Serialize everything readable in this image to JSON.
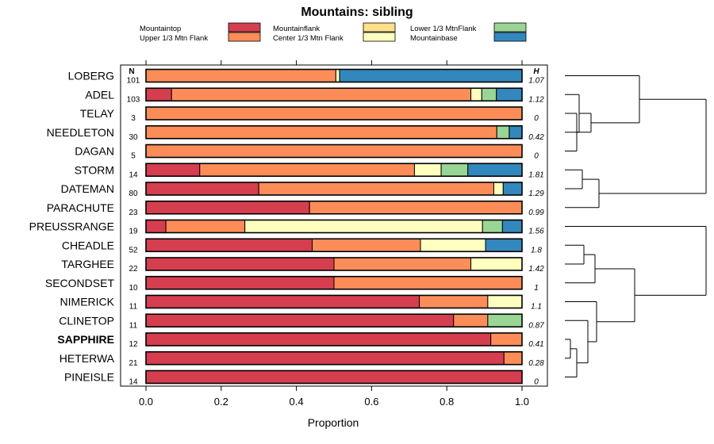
{
  "chart_data": {
    "type": "bar",
    "orientation": "horizontal",
    "stacked": true,
    "title": "Mountains: sibling",
    "xlabel": "Proportion",
    "xlim": [
      0,
      1
    ],
    "xticks": [
      "0.0",
      "0.2",
      "0.4",
      "0.6",
      "0.8",
      "1.0"
    ],
    "xtick_values": [
      0,
      0.2,
      0.4,
      0.6,
      0.8,
      1.0
    ],
    "n_header": "N",
    "h_header": "H",
    "categories": [
      "LOBERG",
      "ADEL",
      "TELAY",
      "NEEDLETON",
      "DAGAN",
      "STORM",
      "DATEMAN",
      "PARACHUTE",
      "PREUSSRANGE",
      "CHEADLE",
      "TARGHEE",
      "SECONDSET",
      "NIMERICK",
      "CLINETOP",
      "SAPPHIRE",
      "HETERWA",
      "PINEISLE"
    ],
    "highlight": "SAPPHIRE",
    "n": [
      "101",
      "103",
      "3",
      "30",
      "5",
      "14",
      "80",
      "23",
      "19",
      "52",
      "22",
      "10",
      "11",
      "11",
      "12",
      "21",
      "14"
    ],
    "h": [
      "1.07",
      "1.12",
      "0",
      "0.42",
      "0",
      "1.81",
      "1.29",
      "0.99",
      "1.56",
      "1.8",
      "1.42",
      "1",
      "1.1",
      "0.87",
      "0.41",
      "0.28",
      "0"
    ],
    "series": [
      {
        "name": "Mountaintop",
        "color": "#d53e4f",
        "values": [
          0,
          0.068,
          0,
          0,
          0,
          0.143,
          0.3,
          0.435,
          0.053,
          0.442,
          0.5,
          0.5,
          0.727,
          0.818,
          0.917,
          0.952,
          1.0
        ]
      },
      {
        "name": "Upper 1/3 Mtn Flank",
        "color": "#fc8d59",
        "values": [
          0.505,
          0.796,
          1.0,
          0.933,
          1.0,
          0.571,
          0.625,
          0.565,
          0.21,
          0.288,
          0.364,
          0.5,
          0.182,
          0.091,
          0.083,
          0.048,
          0
        ]
      },
      {
        "name": "Mountainflank",
        "color": "#fee08b",
        "values": [
          0,
          0,
          0,
          0,
          0,
          0,
          0,
          0,
          0,
          0,
          0,
          0,
          0,
          0,
          0,
          0,
          0
        ]
      },
      {
        "name": "Center 1/3 Mtn Flank",
        "color": "#ffffbf",
        "values": [
          0.01,
          0.029,
          0,
          0,
          0,
          0.071,
          0.025,
          0,
          0.632,
          0.173,
          0.136,
          0,
          0.091,
          0,
          0,
          0,
          0
        ]
      },
      {
        "name": "Lower 1/3 MtnFlank",
        "color": "#99d594",
        "values": [
          0,
          0.039,
          0,
          0.033,
          0,
          0.071,
          0,
          0,
          0.053,
          0,
          0,
          0,
          0,
          0.091,
          0,
          0,
          0
        ]
      },
      {
        "name": "Mountainbase",
        "color": "#3288bd",
        "values": [
          0.485,
          0.068,
          0,
          0.034,
          0,
          0.144,
          0.05,
          0,
          0.052,
          0.097,
          0,
          0,
          0,
          0,
          0,
          0,
          0
        ]
      }
    ],
    "legend_order": [
      [
        "Mountaintop",
        "Mountainflank",
        "Lower 1/3 MtnFlank"
      ],
      [
        "Upper 1/3 Mtn Flank",
        "Center 1/3 Mtn Flank",
        "Mountainbase"
      ]
    ],
    "legend_colors": {
      "Mountaintop": "#d53e4f",
      "Upper 1/3 Mtn Flank": "#fc8d59",
      "Mountainflank": "#fee08b",
      "Center 1/3 Mtn Flank": "#ffffbf",
      "Lower 1/3 MtnFlank": "#99d594",
      "Mountainbase": "#3288bd"
    },
    "dendrogram": {
      "description": "Hierarchical clustering of sites (unlabeled dendrogram at right)",
      "merges": [
        [
          "ADEL",
          "NEEDLETON"
        ],
        [
          "TELAY",
          "DAGAN"
        ],
        [
          "ADEL+NEEDLETON",
          "TELAY+DAGAN"
        ],
        [
          "LOBERG",
          "ADEL+NEEDLETON+TELAY+DAGAN"
        ],
        [
          "STORM",
          "DATEMAN"
        ],
        [
          "STORM+DATEMAN",
          "PARACHUTE"
        ],
        [
          "LOBERG-cluster",
          "STORM-cluster"
        ],
        [
          "CHEADLE",
          "TARGHEE"
        ],
        [
          "CHEADLE+TARGHEE",
          "SECONDSET"
        ],
        [
          "SAPPHIRE",
          "HETERWA"
        ],
        [
          "SAPPHIRE+HETERWA",
          "PINEISLE"
        ],
        [
          "SAPPHIRE-cluster",
          "CLINETOP"
        ],
        [
          "CLINETOP-cluster",
          "NIMERICK"
        ],
        [
          "CHEADLE-cluster",
          "NIMERICK-cluster"
        ],
        [
          "CHEADLE-cluster",
          "PREUSSRANGE"
        ],
        [
          "top-cluster",
          "bottom-cluster"
        ]
      ]
    }
  }
}
